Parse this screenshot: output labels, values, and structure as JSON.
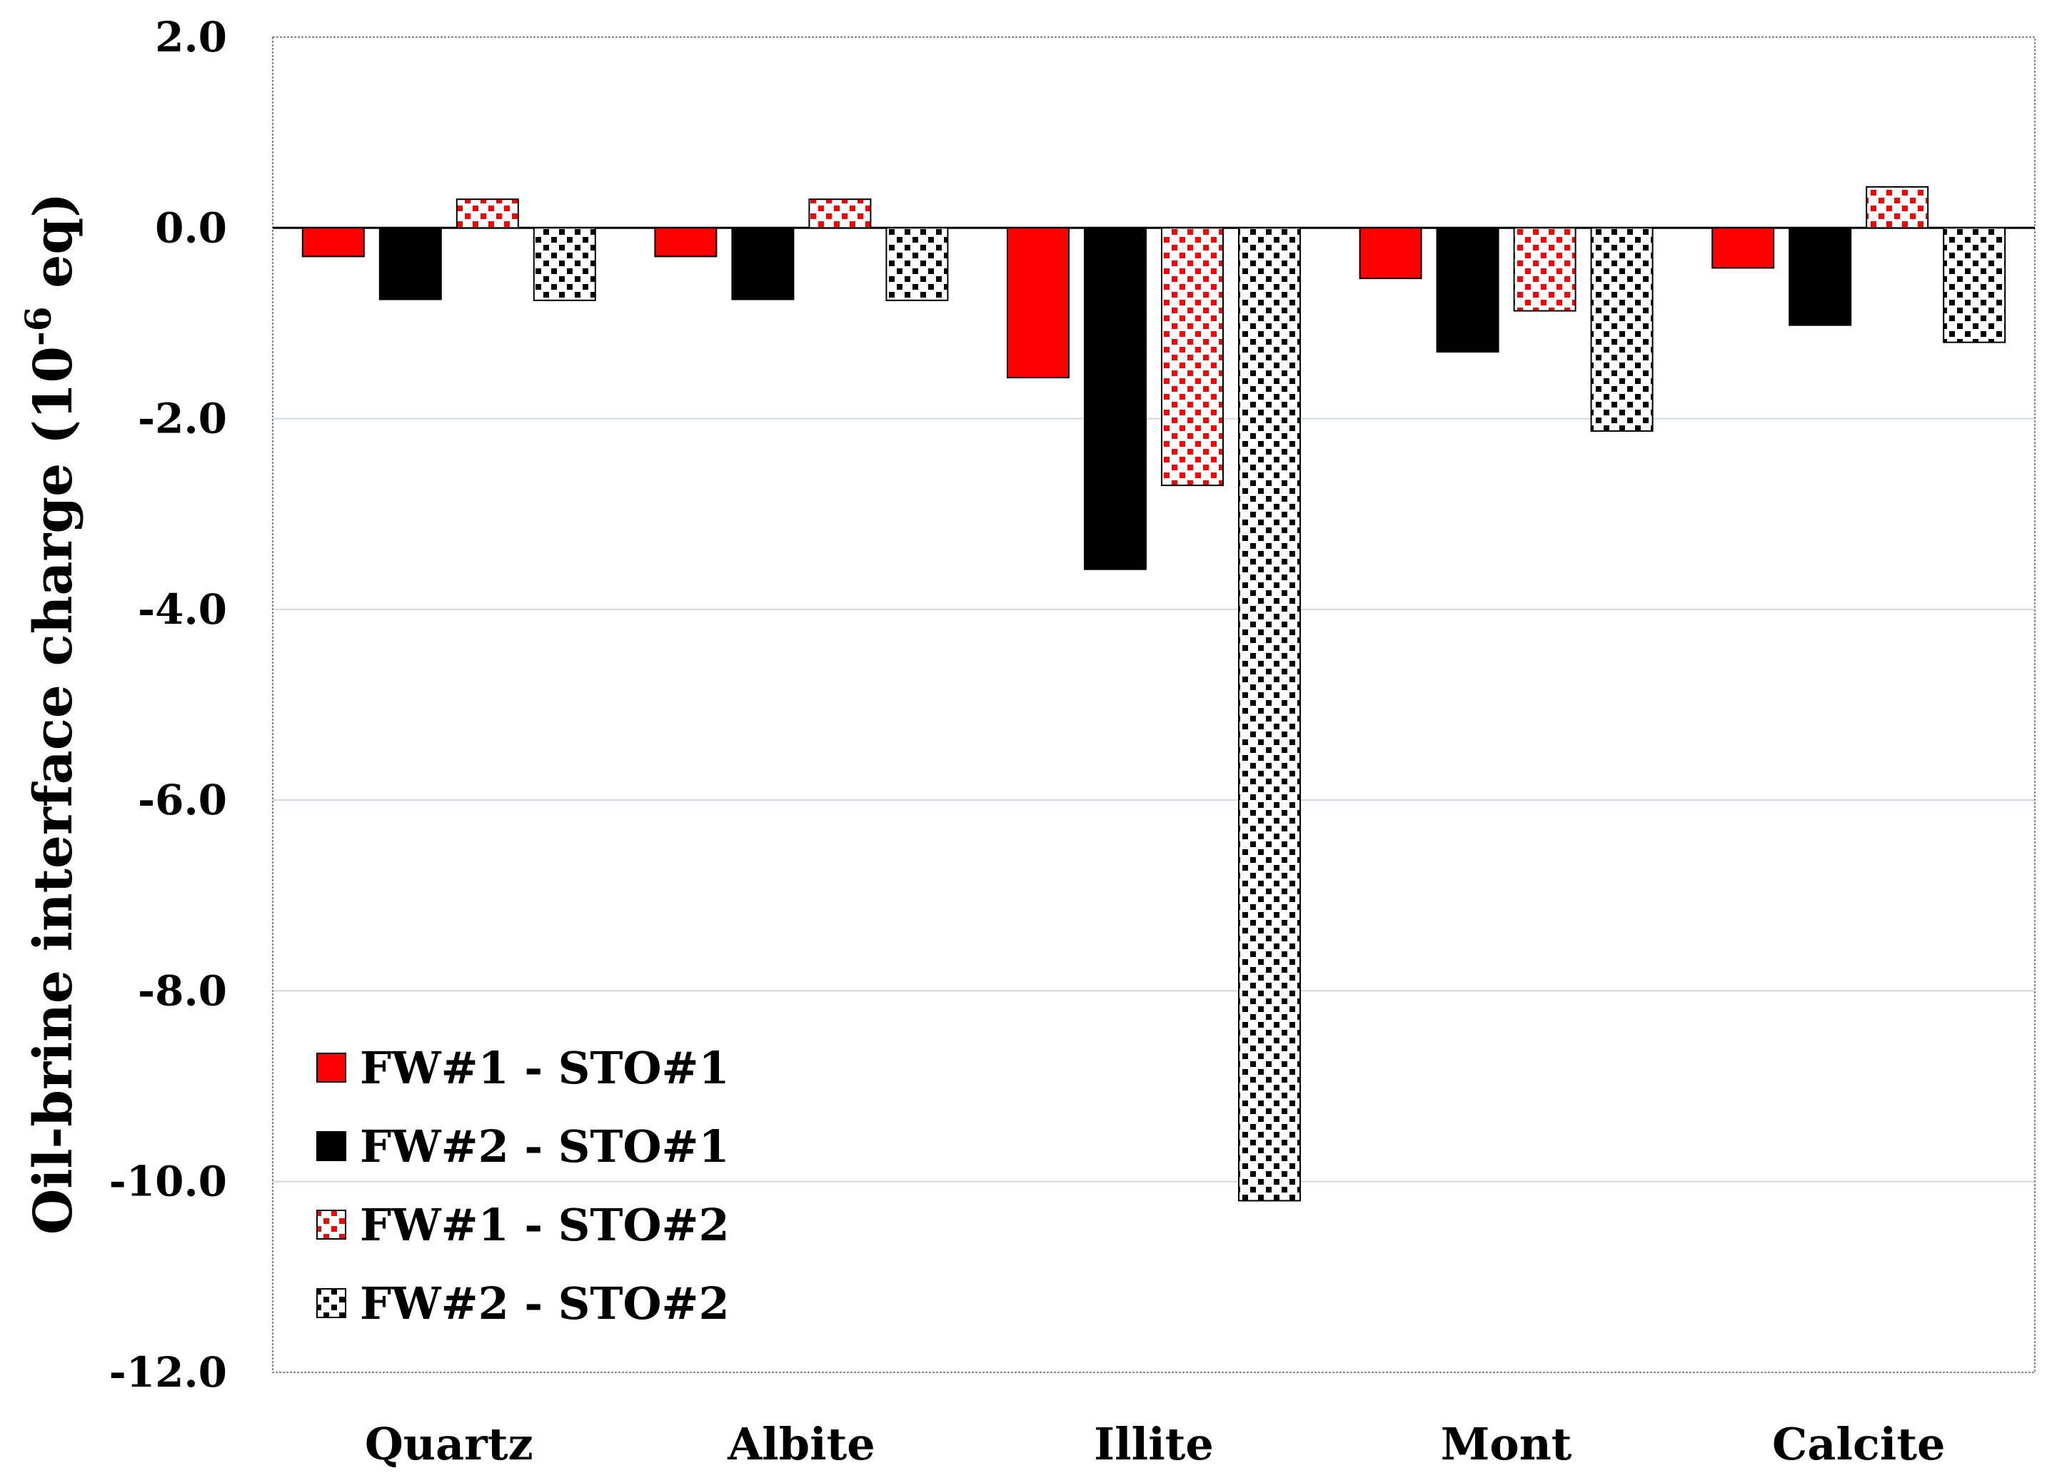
{
  "chart_data": {
    "type": "bar",
    "ylabel_main": "Oil-brine interface charge (10",
    "ylabel_exp": "-6",
    "ylabel_tail": " eq)",
    "ylim": [
      -12.0,
      2.0
    ],
    "yticks": [
      "2.0",
      "0.0",
      "-2.0",
      "-4.0",
      "-6.0",
      "-8.0",
      "-10.0",
      "-12.0"
    ],
    "ytick_values": [
      2,
      0,
      -2,
      -4,
      -6,
      -8,
      -10,
      -12
    ],
    "categories": [
      "Quartz",
      "Albite",
      "Illite",
      "Mont",
      "Calcite"
    ],
    "grid": true,
    "legend_position": "bottom-left",
    "series": [
      {
        "name": "FW#1 - STO#1",
        "color": "#ff0000",
        "pattern": "solid-red",
        "values": [
          -0.3,
          -0.3,
          -1.57,
          -0.53,
          -0.42
        ]
      },
      {
        "name": "FW#2 - STO#1",
        "color": "#000000",
        "pattern": "solid-black",
        "values": [
          -0.75,
          -0.75,
          -3.58,
          -1.3,
          -1.02
        ]
      },
      {
        "name": "FW#1 - STO#2",
        "color": "#ff0000",
        "pattern": "checker-red",
        "values": [
          0.3,
          0.3,
          -2.7,
          -0.87,
          0.43
        ]
      },
      {
        "name": "FW#2 - STO#2",
        "color": "#000000",
        "pattern": "checker-black",
        "values": [
          -0.76,
          -0.76,
          -10.2,
          -2.13,
          -1.2
        ]
      }
    ]
  }
}
